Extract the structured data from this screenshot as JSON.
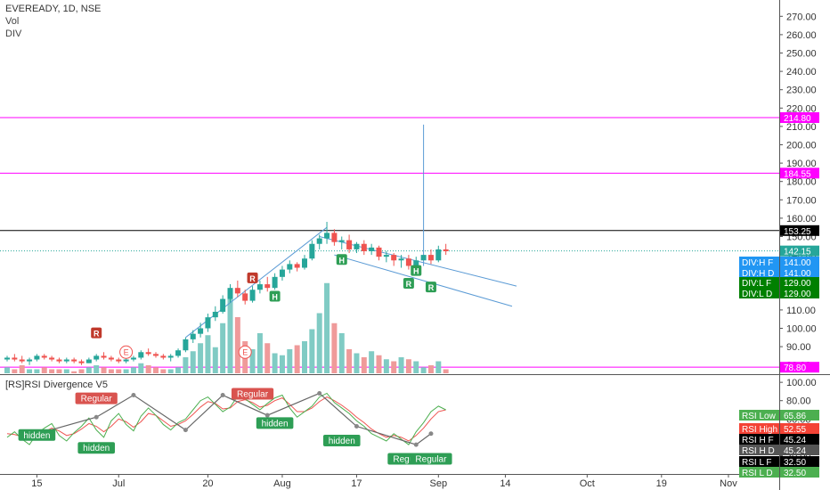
{
  "header": {
    "symbol": "EVEREADY",
    "interval": "1D",
    "exchange": "NSE",
    "title": "EVEREADY, 1D, NSE",
    "lines": [
      "Vol",
      "DIV"
    ]
  },
  "price_axis": {
    "ticks": [
      "270.00",
      "260.00",
      "250.00",
      "240.00",
      "230.00",
      "220.00",
      "210.00",
      "200.00",
      "190.00",
      "180.00",
      "170.00",
      "160.00",
      "150.00",
      "140.00",
      "130.00",
      "120.00",
      "110.00",
      "100.00",
      "90.00",
      "80.00"
    ]
  },
  "rsi_axis": {
    "ticks": [
      "100.00",
      "80.00",
      "60.00",
      "40.00",
      "20.00"
    ]
  },
  "time_axis": {
    "ticks": [
      "15",
      "Jul",
      "20",
      "Aug",
      "17",
      "Sep",
      "14",
      "Oct",
      "19",
      "Nov"
    ]
  },
  "price_tags": [
    {
      "text": "214.80",
      "color": "#ff00ff"
    },
    {
      "text": "184.55",
      "color": "#ff00ff"
    },
    {
      "text": "153.25",
      "color": "#000000"
    },
    {
      "text": "142.15",
      "color": "#26a69a"
    },
    {
      "text": "DIV:H F",
      "value": "141.00",
      "color": "#2196f3"
    },
    {
      "text": "DIV:H D",
      "value": "141.00",
      "color": "#2196f3"
    },
    {
      "text": "DIV:L F",
      "value": "129.00",
      "color": "#008000"
    },
    {
      "text": "DIV:L D",
      "value": "129.00",
      "color": "#008000"
    },
    {
      "text": "78.80",
      "color": "#ff00ff"
    }
  ],
  "rsi_panel": {
    "title": "[RS]RSI Divergence V5"
  },
  "rsi_tags": [
    {
      "text": "RSI Low",
      "value": "65.86",
      "color": "#4caf50"
    },
    {
      "text": "RSI High",
      "value": "52.55",
      "color": "#f44336"
    },
    {
      "text": "RSI H F",
      "value": "45.24",
      "color": "#000000"
    },
    {
      "text": "RSI H D",
      "value": "45.24",
      "color": "#555555"
    },
    {
      "text": "RSI L F",
      "value": "32.50",
      "color": "#000000"
    },
    {
      "text": "RSI L D",
      "value": "32.50",
      "color": "#4caf50"
    }
  ],
  "markers": {
    "R": "R",
    "H": "H",
    "E": "E",
    "regular": "Regular",
    "hidden": "hidden"
  },
  "colors": {
    "up": "#26a69a",
    "down": "#ef5350",
    "level": "#ff00ff",
    "channel": "#5b9bd5",
    "rsi": "#4caf50",
    "rsi_sig": "#ef5350"
  },
  "chart_data": {
    "type": "candlestick",
    "price_range": [
      75,
      275
    ],
    "rsi_range": [
      0,
      105
    ],
    "horizontal_levels": [
      214.8,
      184.55,
      153.25,
      78.8
    ],
    "last_price": 142.15,
    "spike_high": 211,
    "candles": [
      [
        83,
        85,
        82,
        84
      ],
      [
        84,
        86,
        82,
        83
      ],
      [
        83,
        85,
        81,
        82
      ],
      [
        82,
        84,
        80,
        83
      ],
      [
        83,
        86,
        82,
        85
      ],
      [
        85,
        86,
        83,
        84
      ],
      [
        84,
        85,
        82,
        83
      ],
      [
        83,
        84,
        81,
        82
      ],
      [
        82,
        84,
        81,
        83
      ],
      [
        83,
        84,
        81,
        82
      ],
      [
        82,
        83,
        80,
        81
      ],
      [
        81,
        84,
        81,
        83
      ],
      [
        83,
        86,
        82,
        85
      ],
      [
        85,
        87,
        83,
        84
      ],
      [
        84,
        85,
        82,
        83
      ],
      [
        83,
        84,
        81,
        82
      ],
      [
        82,
        84,
        81,
        83
      ],
      [
        83,
        85,
        82,
        84
      ],
      [
        84,
        88,
        83,
        87
      ],
      [
        87,
        89,
        85,
        86
      ],
      [
        86,
        87,
        84,
        85
      ],
      [
        85,
        86,
        83,
        84
      ],
      [
        84,
        86,
        82,
        85
      ],
      [
        85,
        89,
        84,
        88
      ],
      [
        88,
        95,
        87,
        94
      ],
      [
        94,
        99,
        92,
        97
      ],
      [
        97,
        103,
        95,
        100
      ],
      [
        100,
        108,
        98,
        106
      ],
      [
        106,
        112,
        104,
        109
      ],
      [
        109,
        118,
        108,
        116
      ],
      [
        116,
        124,
        114,
        122
      ],
      [
        122,
        126,
        117,
        119
      ],
      [
        119,
        121,
        113,
        115
      ],
      [
        115,
        123,
        114,
        121
      ],
      [
        121,
        126,
        119,
        124
      ],
      [
        124,
        128,
        120,
        122
      ],
      [
        122,
        130,
        121,
        128
      ],
      [
        128,
        134,
        126,
        132
      ],
      [
        132,
        137,
        130,
        135
      ],
      [
        135,
        136,
        131,
        133
      ],
      [
        133,
        140,
        132,
        138
      ],
      [
        138,
        148,
        137,
        146
      ],
      [
        146,
        151,
        143,
        149
      ],
      [
        149,
        158,
        146,
        152
      ],
      [
        152,
        154,
        145,
        147
      ],
      [
        147,
        150,
        143,
        148
      ],
      [
        148,
        151,
        141,
        143
      ],
      [
        143,
        147,
        141,
        146
      ],
      [
        146,
        148,
        140,
        142
      ],
      [
        142,
        146,
        140,
        144
      ],
      [
        144,
        145,
        137,
        139
      ],
      [
        139,
        142,
        136,
        140
      ],
      [
        140,
        141,
        134,
        137
      ],
      [
        137,
        140,
        133,
        138
      ],
      [
        138,
        140,
        132,
        134
      ],
      [
        134,
        139,
        131,
        137
      ],
      [
        137,
        211,
        134,
        140
      ],
      [
        140,
        143,
        135,
        137
      ],
      [
        137,
        145,
        136,
        143
      ],
      [
        143,
        146,
        140,
        142
      ]
    ],
    "volumes": [
      3,
      2,
      4,
      2,
      2,
      3,
      2,
      2,
      2,
      1,
      2,
      3,
      4,
      3,
      2,
      2,
      2,
      3,
      5,
      4,
      3,
      2,
      2,
      3,
      8,
      11,
      15,
      19,
      13,
      25,
      38,
      28,
      16,
      12,
      20,
      15,
      10,
      9,
      12,
      14,
      16,
      22,
      30,
      45,
      25,
      20,
      12,
      10,
      8,
      11,
      9,
      7,
      6,
      8,
      7,
      6,
      3,
      4,
      6,
      2
    ],
    "rsi": [
      40,
      46,
      38,
      32,
      44,
      50,
      55,
      42,
      36,
      45,
      52,
      61,
      48,
      40,
      58,
      66,
      54,
      47,
      63,
      72,
      64,
      54,
      48,
      56,
      60,
      70,
      80,
      84,
      76,
      68,
      73,
      85,
      82,
      76,
      70,
      77,
      83,
      86,
      72,
      62,
      68,
      74,
      84,
      88,
      78,
      72,
      66,
      58,
      52,
      44,
      40,
      36,
      44,
      38,
      32,
      46,
      56,
      68,
      74,
      70
    ],
    "rsi_signal": [
      44,
      43,
      41,
      38,
      41,
      46,
      50,
      47,
      42,
      44,
      49,
      55,
      52,
      46,
      52,
      60,
      57,
      51,
      57,
      66,
      64,
      58,
      52,
      54,
      58,
      65,
      73,
      79,
      77,
      71,
      72,
      79,
      81,
      78,
      73,
      75,
      80,
      83,
      76,
      68,
      68,
      72,
      79,
      84,
      80,
      75,
      69,
      62,
      56,
      49,
      44,
      40,
      42,
      40,
      36,
      42,
      50,
      60,
      68,
      70
    ],
    "r_labels": [
      "R",
      "R",
      "R",
      "R"
    ],
    "h_labels": [
      "H",
      "H",
      "H"
    ],
    "e_labels": [
      "E",
      "E"
    ],
    "rsi_labels": [
      "Regular",
      "Regular",
      "hidden",
      "hidden",
      "hidden",
      "hidden",
      "Regular",
      "Regular"
    ]
  }
}
